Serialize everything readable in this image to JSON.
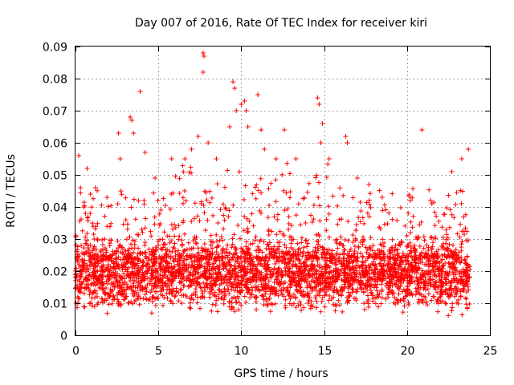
{
  "chart_data": {
    "type": "scatter",
    "title": "Day 007 of 2016, Rate Of TEC Index for receiver kiri",
    "xlabel": "GPS time / hours",
    "ylabel": "ROTI / TECUs",
    "xlim": [
      0,
      25
    ],
    "ylim": [
      0,
      0.09
    ],
    "x_ticks": [
      0,
      5,
      10,
      15,
      20,
      25
    ],
    "x_tick_labels": [
      "0",
      "5",
      "10",
      "15",
      "20",
      "25"
    ],
    "y_ticks": [
      0,
      0.01,
      0.02,
      0.03,
      0.04,
      0.05,
      0.06,
      0.07,
      0.08,
      0.09
    ],
    "y_tick_labels": [
      "0",
      "0.01",
      "0.02",
      "0.03",
      "0.04",
      "0.05",
      "0.06",
      "0.07",
      "0.08",
      "0.09"
    ],
    "grid": true,
    "marker": "+",
    "color": "#ff0000",
    "data_x_range": [
      0,
      23.8
    ],
    "bulk_range": [
      0.005,
      0.03
    ],
    "series": [
      {
        "name": "ROTI",
        "points": [
          [
            0.2,
            0.056
          ],
          [
            0.3,
            0.046
          ],
          [
            0.6,
            0.038
          ],
          [
            0.7,
            0.052
          ],
          [
            0.9,
            0.044
          ],
          [
            1.2,
            0.046
          ],
          [
            1.9,
            0.043
          ],
          [
            2.6,
            0.063
          ],
          [
            2.7,
            0.055
          ],
          [
            3.3,
            0.068
          ],
          [
            3.4,
            0.067
          ],
          [
            3.5,
            0.063
          ],
          [
            3.9,
            0.076
          ],
          [
            4.2,
            0.057
          ],
          [
            4.8,
            0.049
          ],
          [
            5.8,
            0.055
          ],
          [
            6.6,
            0.055
          ],
          [
            7.0,
            0.058
          ],
          [
            7.4,
            0.062
          ],
          [
            7.7,
            0.088
          ],
          [
            7.75,
            0.087
          ],
          [
            7.7,
            0.082
          ],
          [
            8.0,
            0.06
          ],
          [
            8.5,
            0.055
          ],
          [
            9.3,
            0.065
          ],
          [
            9.5,
            0.079
          ],
          [
            9.6,
            0.077
          ],
          [
            9.7,
            0.07
          ],
          [
            10.0,
            0.072
          ],
          [
            10.2,
            0.073
          ],
          [
            10.3,
            0.07
          ],
          [
            10.4,
            0.065
          ],
          [
            11.0,
            0.075
          ],
          [
            11.2,
            0.064
          ],
          [
            11.4,
            0.058
          ],
          [
            12.1,
            0.055
          ],
          [
            12.6,
            0.064
          ],
          [
            13.3,
            0.055
          ],
          [
            14.6,
            0.074
          ],
          [
            14.7,
            0.072
          ],
          [
            14.9,
            0.066
          ],
          [
            14.8,
            0.06
          ],
          [
            15.3,
            0.055
          ],
          [
            16.3,
            0.062
          ],
          [
            16.4,
            0.06
          ],
          [
            17.0,
            0.049
          ],
          [
            17.7,
            0.047
          ],
          [
            18.5,
            0.043
          ],
          [
            20.2,
            0.042
          ],
          [
            20.9,
            0.064
          ],
          [
            21.5,
            0.041
          ],
          [
            22.7,
            0.051
          ],
          [
            23.3,
            0.055
          ],
          [
            23.7,
            0.058
          ]
        ]
      }
    ]
  }
}
